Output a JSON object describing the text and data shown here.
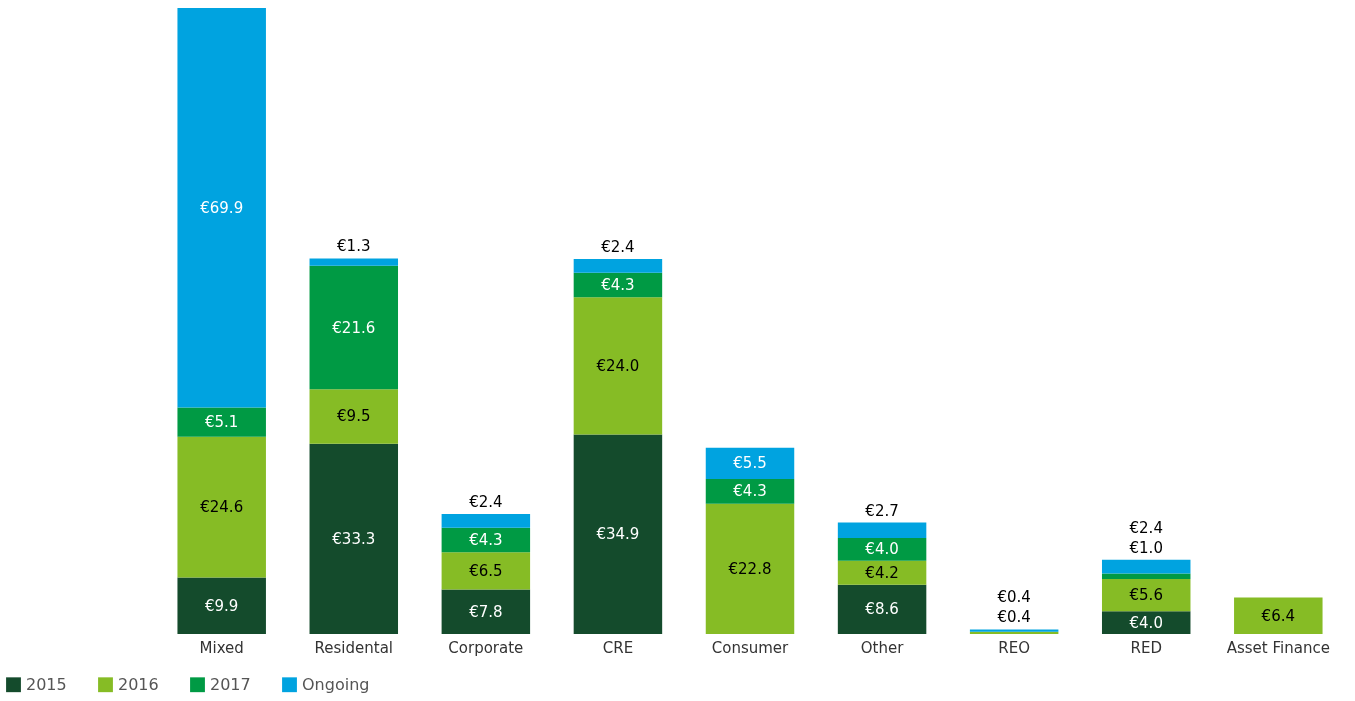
{
  "chart_data": {
    "type": "bar",
    "stacked": true,
    "legend": "bottom left",
    "categories": [
      "Mixed",
      "Residental",
      "Corporate",
      "CRE",
      "Consumer",
      "Other",
      "REO",
      "RED",
      "Asset Finance"
    ],
    "series": [
      {
        "name": "2015",
        "color": "#144b2c",
        "values": [
          9.9,
          33.3,
          7.8,
          34.9,
          null,
          8.6,
          null,
          4.0,
          null
        ],
        "value_labels": [
          "€9.9",
          "€33.3",
          "€7.8",
          "€34.9",
          null,
          "€8.6",
          null,
          "€4.0",
          null
        ]
      },
      {
        "name": "2016",
        "color": "#86bc25",
        "values": [
          24.6,
          9.5,
          6.5,
          24.0,
          22.8,
          4.2,
          0.4,
          5.6,
          6.4
        ],
        "value_labels": [
          "€24.6",
          "€9.5",
          "€6.5",
          "€24.0",
          "€22.8",
          "€4.2",
          "€0.4",
          "€5.6",
          "€6.4"
        ]
      },
      {
        "name": "2017",
        "color": "#009a44",
        "values": [
          5.1,
          21.6,
          4.3,
          4.3,
          4.3,
          4.0,
          null,
          1.0,
          null
        ],
        "value_labels": [
          "€5.1",
          "€21.6",
          "€4.3",
          "€4.3",
          "€4.3",
          "€4.0",
          null,
          "€1.0",
          null
        ]
      },
      {
        "name": "Ongoing",
        "color": "#00a3e0",
        "values": [
          69.9,
          1.3,
          2.4,
          2.4,
          5.5,
          2.7,
          0.4,
          2.4,
          null
        ],
        "value_labels": [
          "€69.9",
          "€1.3",
          "€2.4",
          "€2.4",
          "€5.5",
          "€2.7",
          "€0.4",
          "€2.4",
          null
        ]
      }
    ]
  }
}
